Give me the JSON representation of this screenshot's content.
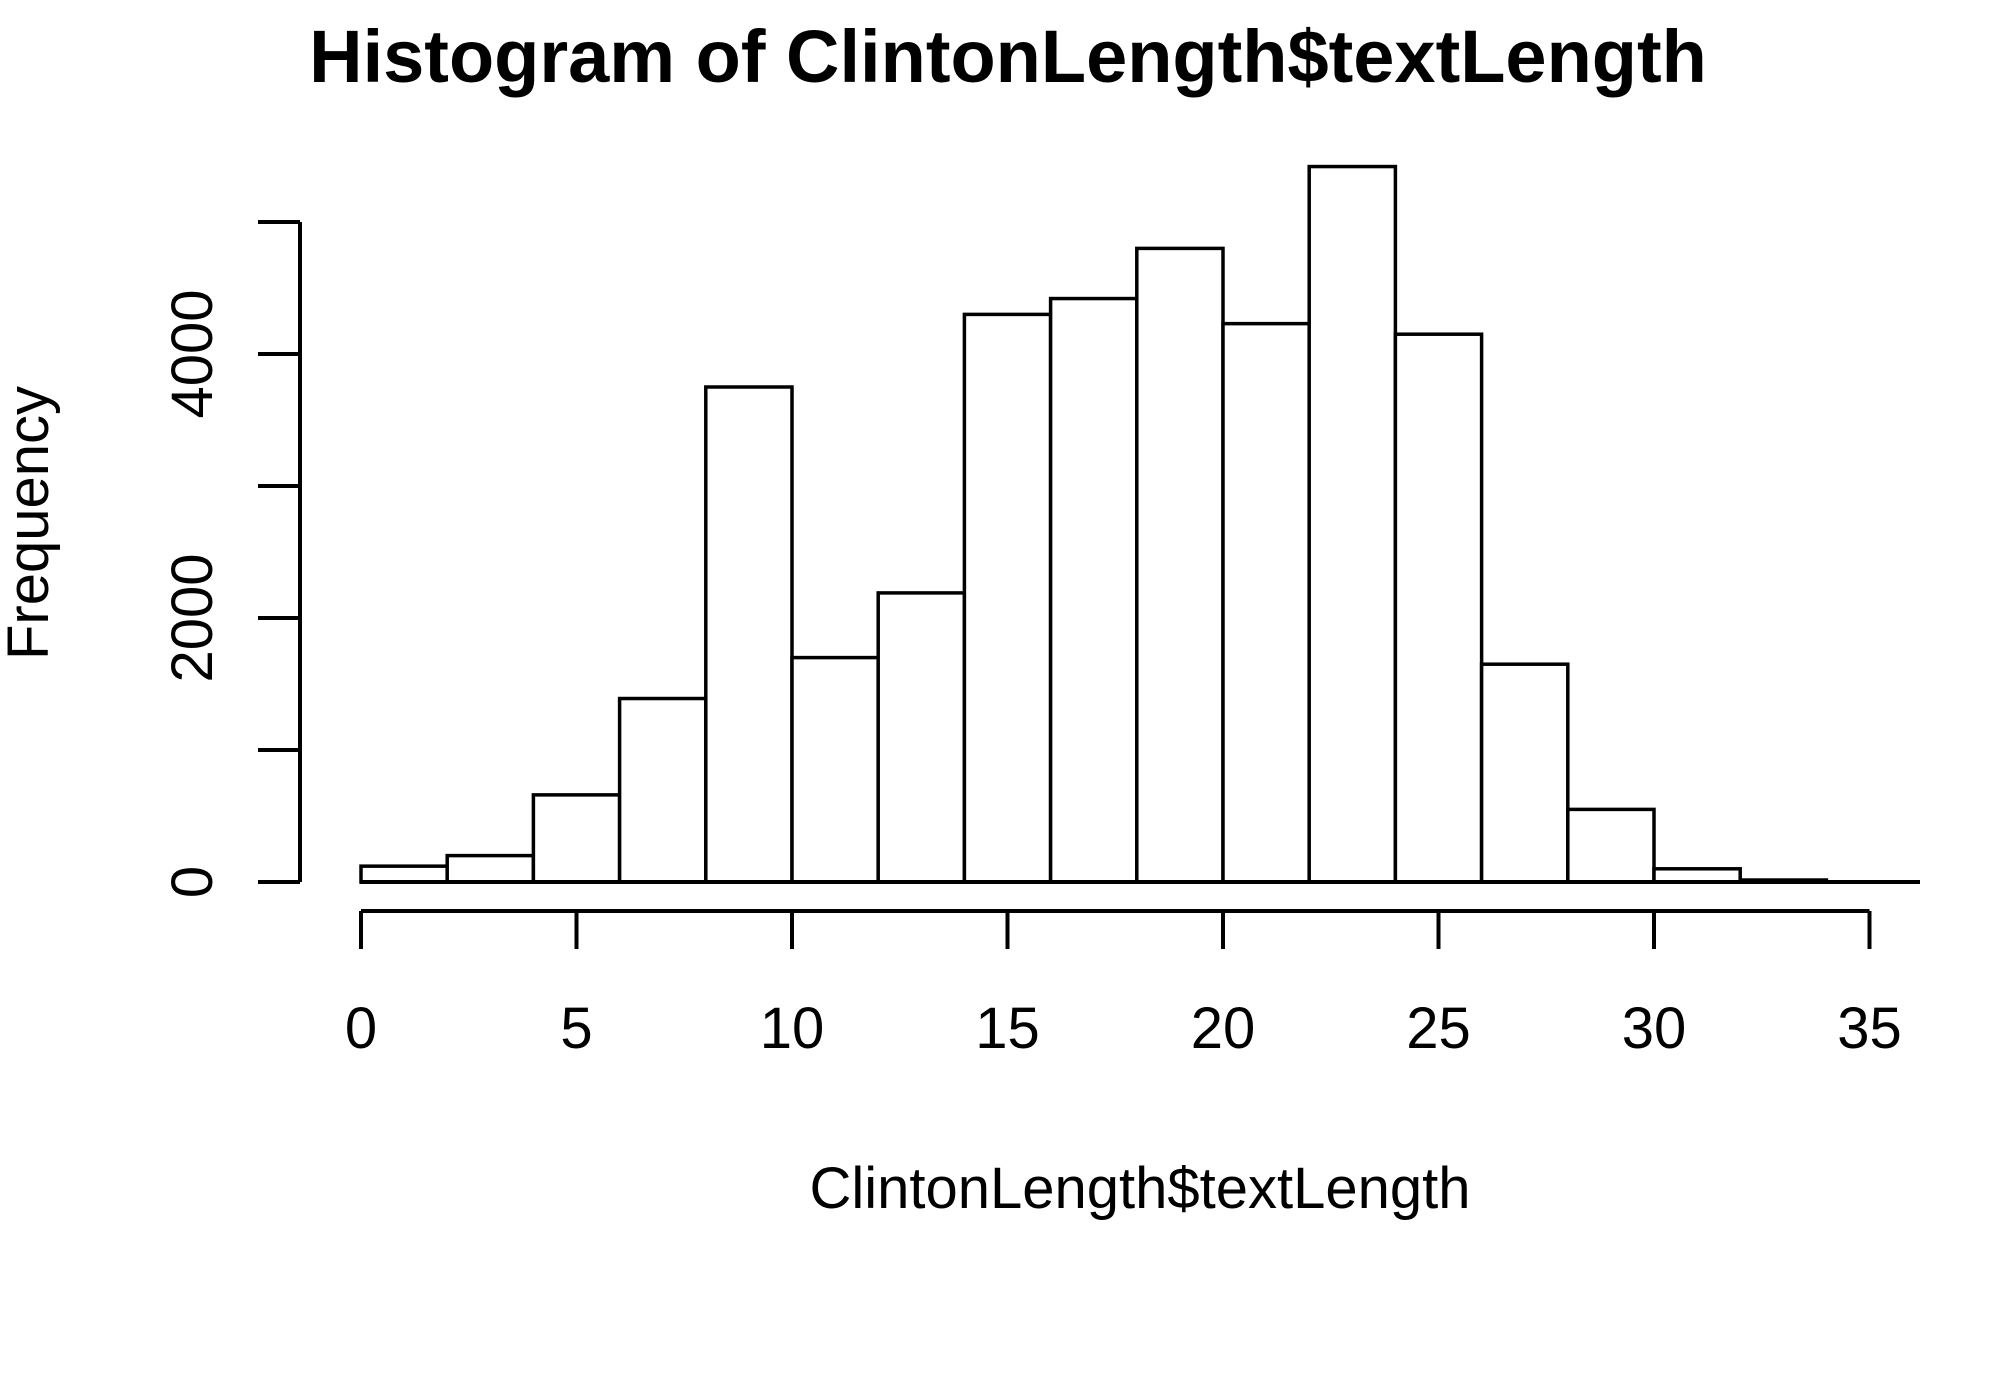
{
  "chart_data": {
    "type": "bar",
    "subtype": "histogram",
    "title": "Histogram of ClintonLength$textLength",
    "xlabel": "ClintonLength$textLength",
    "ylabel": "Frequency",
    "bins": [
      {
        "from": 0,
        "to": 2,
        "count": 120
      },
      {
        "from": 2,
        "to": 4,
        "count": 200
      },
      {
        "from": 4,
        "to": 6,
        "count": 660
      },
      {
        "from": 6,
        "to": 8,
        "count": 1390
      },
      {
        "from": 8,
        "to": 10,
        "count": 3750
      },
      {
        "from": 10,
        "to": 12,
        "count": 1700
      },
      {
        "from": 12,
        "to": 14,
        "count": 2190
      },
      {
        "from": 14,
        "to": 16,
        "count": 4300
      },
      {
        "from": 16,
        "to": 18,
        "count": 4420
      },
      {
        "from": 18,
        "to": 20,
        "count": 4800
      },
      {
        "from": 20,
        "to": 22,
        "count": 4230
      },
      {
        "from": 22,
        "to": 24,
        "count": 5420
      },
      {
        "from": 24,
        "to": 26,
        "count": 4150
      },
      {
        "from": 26,
        "to": 28,
        "count": 1650
      },
      {
        "from": 28,
        "to": 30,
        "count": 550
      },
      {
        "from": 30,
        "to": 32,
        "count": 100
      },
      {
        "from": 32,
        "to": 34,
        "count": 15
      }
    ],
    "x_ticks": [
      0,
      5,
      10,
      15,
      20,
      25,
      30,
      35
    ],
    "x_tick_labels": [
      "0",
      "5",
      "10",
      "15",
      "20",
      "25",
      "30",
      "35"
    ],
    "y_ticks": [
      0,
      1000,
      2000,
      3000,
      4000,
      5000
    ],
    "y_tick_labels": [
      "0",
      "",
      "2000",
      "",
      "4000",
      ""
    ],
    "xlim": [
      0,
      36
    ],
    "ylim": [
      0,
      5420
    ],
    "grid": false,
    "legend": "none",
    "colors": {
      "bar_fill": "#ffffff",
      "bar_stroke": "#000000"
    }
  }
}
